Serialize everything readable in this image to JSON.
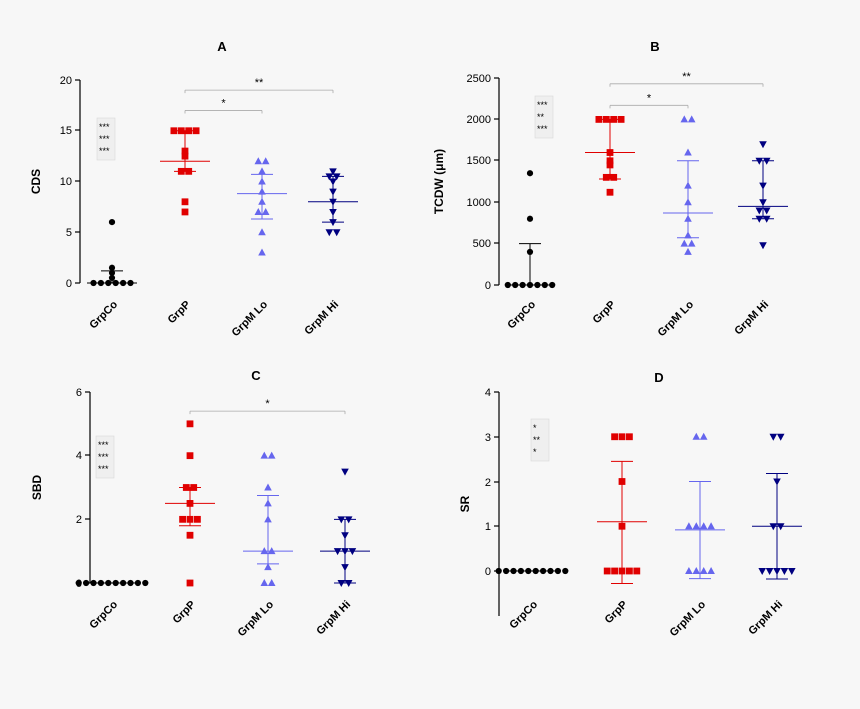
{
  "categories": [
    "GrpCo",
    "GrpP",
    "GrpM Lo",
    "GrpM Hi"
  ],
  "colors": [
    "#000000",
    "#e00000",
    "#6666ee",
    "#000080"
  ],
  "marker_by_category": [
    "circle",
    "square",
    "triangle-up",
    "triangle-down"
  ],
  "chart_data": [
    {
      "type": "scatter",
      "title": "A",
      "ylabel": "CDS",
      "xlabel": "",
      "ylim": [
        0,
        20
      ],
      "yticks": [
        "0",
        "5",
        "10",
        "15",
        "20"
      ],
      "categories": [
        "GrpCo",
        "GrpP",
        "GrpM Lo",
        "GrpM Hi"
      ],
      "series": [
        {
          "values": [
            6,
            1.5,
            1,
            0.5,
            0,
            0,
            0,
            0,
            0,
            0
          ],
          "median": 0,
          "err_low": 0,
          "err_high": 1.2
        },
        {
          "values": [
            15,
            15,
            15,
            15,
            13,
            12.5,
            11,
            11,
            8,
            7
          ],
          "median": 12,
          "err_low": 11,
          "err_high": 15
        },
        {
          "values": [
            12,
            12,
            11,
            10,
            9,
            8,
            7,
            7,
            5,
            3
          ],
          "median": 8.8,
          "err_low": 6.3,
          "err_high": 10.7
        },
        {
          "values": [
            11,
            10.5,
            10.5,
            10,
            9,
            8,
            7,
            6,
            5,
            5
          ],
          "median": 8,
          "err_low": 6,
          "err_high": 10.5
        }
      ],
      "significance_box": [
        "***",
        "***",
        "***"
      ],
      "brackets": [
        {
          "from": 1,
          "to": 3,
          "y": 19,
          "label": "**"
        },
        {
          "from": 1,
          "to": 2,
          "y": 17,
          "label": "*"
        }
      ]
    },
    {
      "type": "scatter",
      "title": "B",
      "ylabel": "TCDW (μm)",
      "xlabel": "",
      "ylim": [
        0,
        2500
      ],
      "yticks": [
        "0",
        "500",
        "1000",
        "1500",
        "2000",
        "2500"
      ],
      "categories": [
        "GrpCo",
        "GrpP",
        "GrpM Lo",
        "GrpM Hi"
      ],
      "series": [
        {
          "values": [
            1350,
            800,
            400,
            0,
            0,
            0,
            0,
            0,
            0,
            0
          ],
          "median": 0,
          "err_low": 0,
          "err_high": 500
        },
        {
          "values": [
            2000,
            2000,
            2000,
            2000,
            1600,
            1500,
            1450,
            1300,
            1300,
            1120
          ],
          "median": 1600,
          "err_low": 1280,
          "err_high": 2000
        },
        {
          "values": [
            2000,
            2000,
            1600,
            1200,
            1000,
            800,
            600,
            500,
            500,
            400
          ],
          "median": 870,
          "err_low": 570,
          "err_high": 1500
        },
        {
          "values": [
            1700,
            1500,
            1500,
            1200,
            1000,
            900,
            900,
            800,
            800,
            480
          ],
          "median": 950,
          "err_low": 800,
          "err_high": 1500
        }
      ],
      "significance_box": [
        "***",
        "**",
        "***"
      ],
      "brackets": [
        {
          "from": 1,
          "to": 3,
          "y": 2430,
          "label": "**"
        },
        {
          "from": 1,
          "to": 2,
          "y": 2170,
          "label": "*"
        }
      ]
    },
    {
      "type": "scatter",
      "title": "C",
      "ylabel": "SBD",
      "xlabel": "",
      "ylim": [
        0,
        6
      ],
      "yticks": [
        "0",
        "2",
        "4",
        "6"
      ],
      "categories": [
        "GrpCo",
        "GrpP",
        "GrpM Lo",
        "GrpM Hi"
      ],
      "series": [
        {
          "values": [
            0,
            0,
            0,
            0,
            0,
            0,
            0,
            0,
            0,
            0
          ],
          "median": 0,
          "err_low": 0,
          "err_high": 0
        },
        {
          "values": [
            5,
            4,
            3,
            3,
            2.5,
            2,
            2,
            2,
            1.5,
            0
          ],
          "median": 2.5,
          "err_low": 1.8,
          "err_high": 3
        },
        {
          "values": [
            4,
            4,
            3,
            2.5,
            2,
            1,
            1,
            0.5,
            0,
            0
          ],
          "median": 1,
          "err_low": 0.6,
          "err_high": 2.75
        },
        {
          "values": [
            3.5,
            2,
            2,
            1.5,
            1,
            1,
            1,
            0.5,
            0,
            0
          ],
          "median": 1,
          "err_low": 0,
          "err_high": 2
        }
      ],
      "significance_box": [
        "***",
        "***",
        "***"
      ],
      "brackets": [
        {
          "from": 1,
          "to": 3,
          "y": 5.4,
          "label": "*"
        }
      ]
    },
    {
      "type": "scatter",
      "title": "D",
      "ylabel": "SR",
      "xlabel": "",
      "ylim": [
        -1,
        4
      ],
      "yticks": [
        "0",
        "1",
        "2",
        "3",
        "4"
      ],
      "categories": [
        "GrpCo",
        "GrpP",
        "GrpM Lo",
        "GrpM Hi"
      ],
      "series": [
        {
          "values": [
            0,
            0,
            0,
            0,
            0,
            0,
            0,
            0,
            0,
            0
          ],
          "median": 0,
          "err_low": 0,
          "err_high": 0
        },
        {
          "values": [
            3,
            3,
            3,
            2,
            1,
            0,
            0,
            0,
            0,
            0
          ],
          "median": 1.1,
          "err_low": -0.28,
          "err_high": 2.45
        },
        {
          "values": [
            3,
            3,
            1,
            1,
            1,
            1,
            0,
            0,
            0,
            0
          ],
          "median": 0.92,
          "err_low": -0.17,
          "err_high": 2
        },
        {
          "values": [
            3,
            3,
            2,
            1,
            1,
            0,
            0,
            0,
            0,
            0
          ],
          "median": 1,
          "err_low": -0.18,
          "err_high": 2.18
        }
      ],
      "significance_box": [
        "*",
        "**",
        "*"
      ],
      "brackets": []
    }
  ]
}
